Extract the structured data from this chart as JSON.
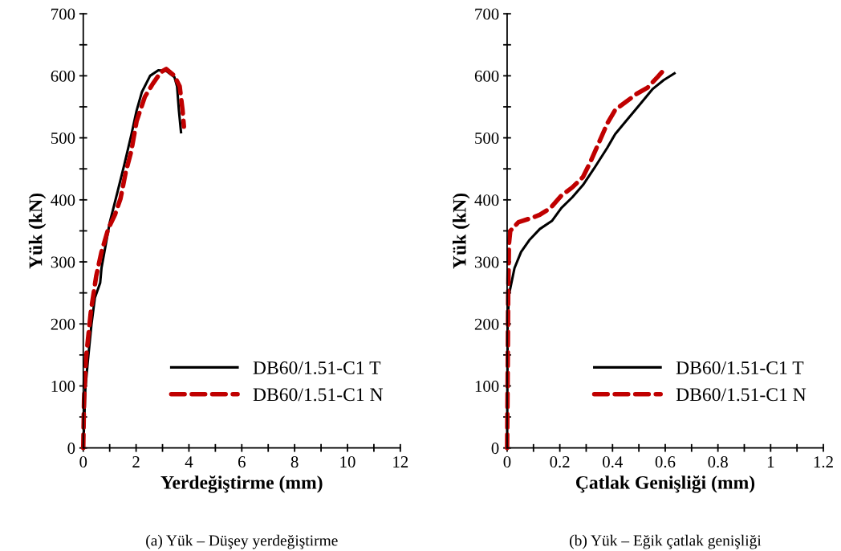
{
  "chart_data": [
    {
      "type": "line",
      "xlabel": "Yerdeğiştirme (mm)",
      "ylabel": "Yük (kN)",
      "annotations": [
        "(a) Yük – Düşey yerdeğiştirme"
      ],
      "legend": "bottom right",
      "grid": false,
      "xlim": [
        0,
        12
      ],
      "ylim": [
        0,
        700
      ],
      "xticks": [
        0,
        {
          "value": 1,
          "label": null
        },
        2,
        {
          "value": 3,
          "label": null
        },
        4,
        {
          "value": 5,
          "label": null
        },
        6,
        {
          "value": 7,
          "label": null
        },
        8,
        {
          "value": 9,
          "label": null
        },
        10,
        {
          "value": 11,
          "label": null
        },
        12
      ],
      "yticks": [
        0,
        {
          "value": 50,
          "label": null
        },
        100,
        {
          "value": 150,
          "label": null
        },
        200,
        {
          "value": 250,
          "label": null
        },
        300,
        {
          "value": 350,
          "label": null
        },
        400,
        {
          "value": 450,
          "label": null
        },
        500,
        {
          "value": 550,
          "label": null
        },
        600,
        {
          "value": 650,
          "label": null
        },
        700
      ],
      "series": [
        {
          "name": "DB60/1.51-C1 T",
          "color": "#000000",
          "line_style": "solid",
          "x": [
            0,
            0.08,
            0.18,
            0.31,
            0.44,
            0.64,
            0.69,
            1.0,
            1.31,
            1.56,
            1.82,
            2.02,
            2.22,
            2.53,
            2.84,
            3.14,
            3.45,
            3.55,
            3.62,
            3.7
          ],
          "values": [
            0,
            96,
            143,
            199,
            242,
            266,
            290,
            363,
            415,
            458,
            505,
            544,
            574,
            600,
            609,
            608,
            598,
            583,
            544,
            509
          ]
        },
        {
          "name": "DB60/1.51-C1 N",
          "color": "#c00000",
          "line_style": "dashed",
          "x": [
            0,
            0.03,
            0.1,
            0.29,
            0.49,
            0.69,
            0.95,
            1.2,
            1.41,
            1.61,
            1.82,
            2.02,
            2.33,
            2.63,
            2.94,
            3.14,
            3.45,
            3.65,
            3.76,
            3.81
          ],
          "values": [
            0,
            78,
            143,
            221,
            277,
            316,
            354,
            376,
            402,
            445,
            479,
            527,
            566,
            587,
            606,
            611,
            600,
            583,
            544,
            518
          ]
        }
      ]
    },
    {
      "type": "line",
      "xlabel": "Çatlak Genişliği (mm)",
      "ylabel": "Yük (kN)",
      "annotations": [
        "(b) Yük – Eğik çatlak genişliği"
      ],
      "legend": "bottom right",
      "grid": false,
      "xlim": [
        0,
        1.2
      ],
      "ylim": [
        0,
        700
      ],
      "xticks": [
        0,
        {
          "value": 0.1,
          "label": null
        },
        {
          "value": 0.2,
          "label": "0.2"
        },
        {
          "value": 0.3,
          "label": null
        },
        {
          "value": 0.4,
          "label": "0.4"
        },
        {
          "value": 0.5,
          "label": null
        },
        {
          "value": 0.6,
          "label": "0.6"
        },
        {
          "value": 0.7,
          "label": null
        },
        {
          "value": 0.8,
          "label": "0.8"
        },
        {
          "value": 0.9,
          "label": null
        },
        1,
        {
          "value": 1.1,
          "label": null
        },
        {
          "value": 1.2,
          "label": "1.2"
        }
      ],
      "yticks": [
        0,
        {
          "value": 50,
          "label": null
        },
        100,
        {
          "value": 150,
          "label": null
        },
        200,
        {
          "value": 250,
          "label": null
        },
        300,
        {
          "value": 350,
          "label": null
        },
        400,
        {
          "value": 450,
          "label": null
        },
        500,
        {
          "value": 550,
          "label": null
        },
        600,
        {
          "value": 650,
          "label": null
        },
        700
      ],
      "series": [
        {
          "name": "DB60/1.51-C1 T",
          "color": "#000000",
          "line_style": "solid",
          "x": [
            0,
            0.002,
            0.007,
            0.028,
            0.053,
            0.084,
            0.124,
            0.17,
            0.206,
            0.247,
            0.288,
            0.329,
            0.38,
            0.41,
            0.451,
            0.502,
            0.553,
            0.594,
            0.635
          ],
          "values": [
            0,
            199,
            247,
            290,
            316,
            335,
            353,
            366,
            387,
            404,
            424,
            450,
            484,
            506,
            527,
            553,
            579,
            593,
            604
          ]
        },
        {
          "name": "DB60/1.51-C1 N",
          "color": "#c00000",
          "line_style": "dashed",
          "x": [
            0,
            0.002,
            0.004,
            0.007,
            0.012,
            0.043,
            0.094,
            0.124,
            0.165,
            0.206,
            0.247,
            0.288,
            0.318,
            0.349,
            0.38,
            0.41,
            0.451,
            0.492,
            0.533,
            0.573,
            0.604
          ],
          "values": [
            0,
            113,
            243,
            329,
            350,
            364,
            371,
            376,
            387,
            407,
            420,
            437,
            463,
            493,
            523,
            545,
            558,
            571,
            581,
            599,
            614
          ]
        }
      ]
    }
  ]
}
